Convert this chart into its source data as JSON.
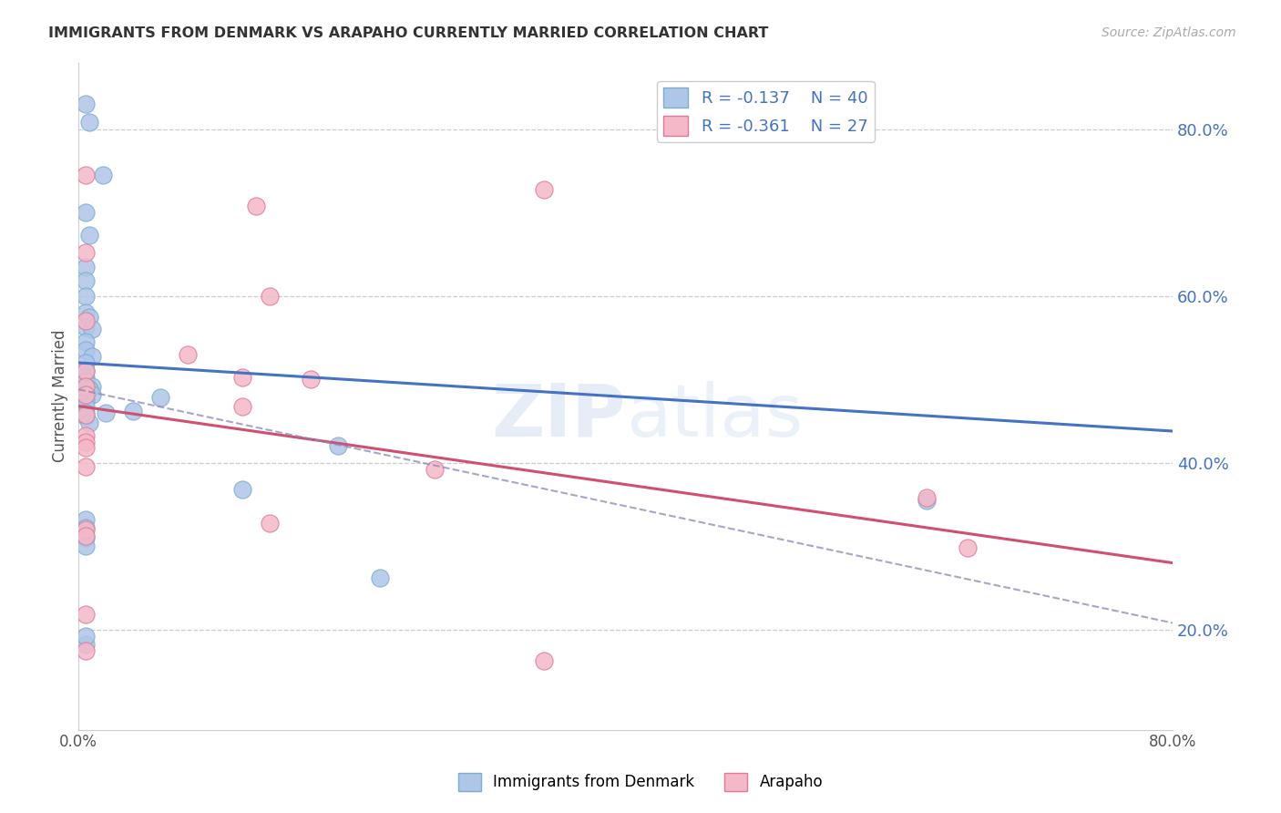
{
  "title": "IMMIGRANTS FROM DENMARK VS ARAPAHO CURRENTLY MARRIED CORRELATION CHART",
  "source": "Source: ZipAtlas.com",
  "ylabel": "Currently Married",
  "right_yticks_vals": [
    0.2,
    0.4,
    0.6,
    0.8
  ],
  "right_ytick_labels": [
    "20.0%",
    "40.0%",
    "60.0%",
    "80.0%"
  ],
  "legend_entries": [
    {
      "label": "Immigrants from Denmark",
      "R": "-0.137",
      "N": "40"
    },
    {
      "label": "Arapaho",
      "R": "-0.361",
      "N": "27"
    }
  ],
  "watermark": "ZIPatlas",
  "xlim": [
    0.0,
    0.8
  ],
  "ylim": [
    0.08,
    0.88
  ],
  "blue_scatter": [
    [
      0.008,
      0.808
    ],
    [
      0.005,
      0.7
    ],
    [
      0.008,
      0.673
    ],
    [
      0.018,
      0.745
    ],
    [
      0.005,
      0.635
    ],
    [
      0.005,
      0.618
    ],
    [
      0.005,
      0.6
    ],
    [
      0.005,
      0.58
    ],
    [
      0.008,
      0.575
    ],
    [
      0.005,
      0.563
    ],
    [
      0.01,
      0.56
    ],
    [
      0.005,
      0.545
    ],
    [
      0.005,
      0.535
    ],
    [
      0.01,
      0.528
    ],
    [
      0.005,
      0.52
    ],
    [
      0.005,
      0.51
    ],
    [
      0.005,
      0.502
    ],
    [
      0.005,
      0.498
    ],
    [
      0.01,
      0.492
    ],
    [
      0.008,
      0.488
    ],
    [
      0.01,
      0.482
    ],
    [
      0.005,
      0.475
    ],
    [
      0.005,
      0.468
    ],
    [
      0.005,
      0.46
    ],
    [
      0.02,
      0.46
    ],
    [
      0.04,
      0.462
    ],
    [
      0.06,
      0.478
    ],
    [
      0.005,
      0.332
    ],
    [
      0.005,
      0.322
    ],
    [
      0.005,
      0.31
    ],
    [
      0.12,
      0.368
    ],
    [
      0.62,
      0.355
    ],
    [
      0.005,
      0.3
    ],
    [
      0.19,
      0.42
    ],
    [
      0.005,
      0.182
    ],
    [
      0.005,
      0.192
    ],
    [
      0.22,
      0.262
    ],
    [
      0.005,
      0.83
    ],
    [
      0.005,
      0.455
    ],
    [
      0.008,
      0.448
    ]
  ],
  "pink_scatter": [
    [
      0.005,
      0.745
    ],
    [
      0.13,
      0.708
    ],
    [
      0.34,
      0.728
    ],
    [
      0.005,
      0.652
    ],
    [
      0.14,
      0.6
    ],
    [
      0.005,
      0.57
    ],
    [
      0.08,
      0.53
    ],
    [
      0.005,
      0.51
    ],
    [
      0.12,
      0.502
    ],
    [
      0.17,
      0.5
    ],
    [
      0.005,
      0.492
    ],
    [
      0.005,
      0.482
    ],
    [
      0.12,
      0.468
    ],
    [
      0.005,
      0.458
    ],
    [
      0.005,
      0.432
    ],
    [
      0.005,
      0.425
    ],
    [
      0.005,
      0.418
    ],
    [
      0.005,
      0.395
    ],
    [
      0.26,
      0.392
    ],
    [
      0.14,
      0.328
    ],
    [
      0.005,
      0.32
    ],
    [
      0.005,
      0.312
    ],
    [
      0.005,
      0.218
    ],
    [
      0.62,
      0.358
    ],
    [
      0.65,
      0.298
    ],
    [
      0.005,
      0.175
    ],
    [
      0.34,
      0.163
    ]
  ],
  "blue_line": [
    [
      0.0,
      0.52
    ],
    [
      0.8,
      0.438
    ]
  ],
  "pink_line": [
    [
      0.0,
      0.468
    ],
    [
      0.8,
      0.28
    ]
  ],
  "dashed_line": [
    [
      0.0,
      0.488
    ],
    [
      0.8,
      0.208
    ]
  ],
  "background_color": "#ffffff",
  "scatter_blue_color": "#aec6e8",
  "scatter_blue_edge": "#7aadce",
  "scatter_pink_color": "#f4b8c8",
  "scatter_pink_edge": "#e07898",
  "trend_blue_color": "#4472c4",
  "trend_pink_color": "#d05070",
  "dashed_color": "#8888bb",
  "ytick_color": "#4472c4",
  "title_color": "#333333",
  "source_color": "#aaaaaa"
}
